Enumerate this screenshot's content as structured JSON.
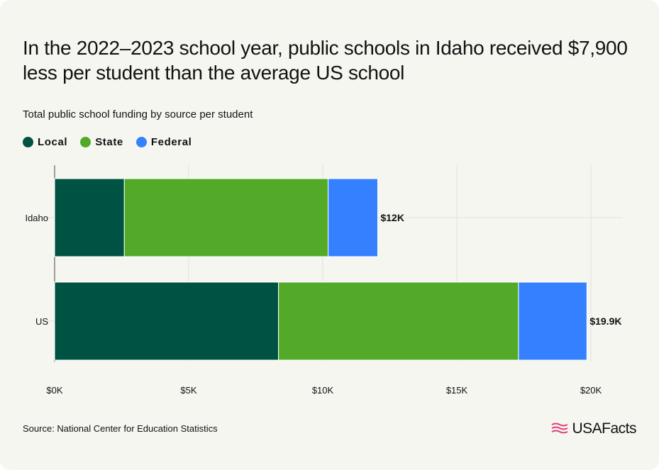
{
  "title": "In the 2022–2023 school year, public schools in Idaho received $7,900 less per student than the average US school",
  "subtitle": "Total public school funding by source per student",
  "legend": [
    {
      "label": "Local",
      "color": "#005242"
    },
    {
      "label": "State",
      "color": "#52aa28"
    },
    {
      "label": "Federal",
      "color": "#3480ff"
    }
  ],
  "source": "Source: National Center for Education Statistics",
  "logo": "USAFacts",
  "chart_data": {
    "type": "bar",
    "orientation": "horizontal",
    "stacked": true,
    "categories": [
      "Idaho",
      "US"
    ],
    "series": [
      {
        "name": "Local",
        "color": "#005242",
        "values": [
          2600,
          8350
        ]
      },
      {
        "name": "State",
        "color": "#52aa28",
        "values": [
          7600,
          8950
        ]
      },
      {
        "name": "Federal",
        "color": "#3480ff",
        "values": [
          1850,
          2550
        ]
      }
    ],
    "total_labels": [
      "$12K",
      "$19.9K"
    ],
    "xlim": [
      0,
      21000
    ],
    "x_ticks": [
      0,
      5000,
      10000,
      15000,
      20000
    ],
    "x_tick_labels": [
      "$0K",
      "$5K",
      "$10K",
      "$15K",
      "$20K"
    ],
    "grid": true
  }
}
